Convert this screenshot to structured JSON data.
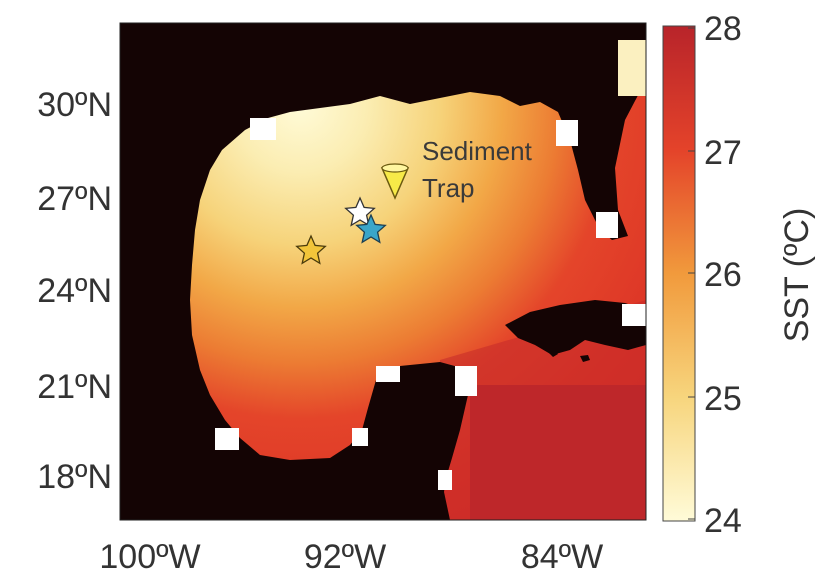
{
  "map": {
    "lat_ticks": [
      "30ºN",
      "27ºN",
      "24ºN",
      "21ºN",
      "18ºN"
    ],
    "lon_ticks": [
      "100ºW",
      "92ºW",
      "84ºW"
    ],
    "annotation": {
      "line1": "Sediment",
      "line2": "Trap"
    },
    "markers": [
      {
        "name": "white-star",
        "color": "#ffffff"
      },
      {
        "name": "blue-star",
        "color": "#3aa6c9"
      },
      {
        "name": "yellow-star",
        "color": "#f2c53a"
      },
      {
        "name": "sediment-trap",
        "color": "#f7ea48"
      }
    ],
    "land_color": "#140404"
  },
  "colorbar": {
    "label": "SST (ºC)",
    "ticks": [
      "28",
      "27",
      "26",
      "25",
      "24"
    ],
    "range": [
      24,
      28
    ],
    "colors": [
      "#fffbd8",
      "#f7d57d",
      "#f19a3c",
      "#e4432a",
      "#b8242a"
    ]
  }
}
